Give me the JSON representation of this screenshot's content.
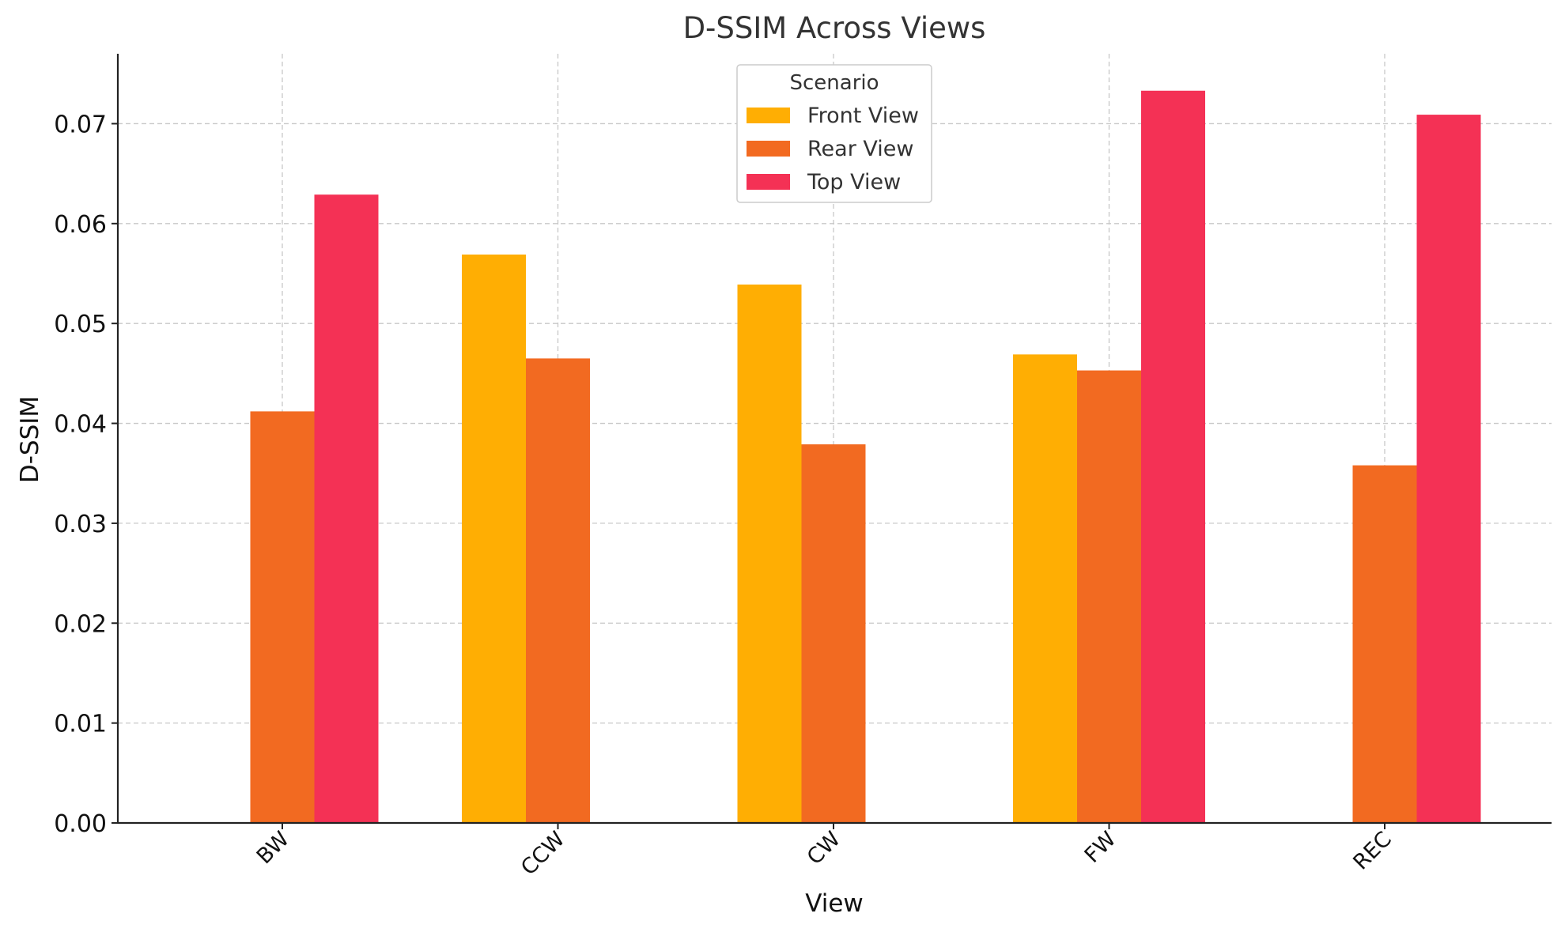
{
  "chart_data": {
    "type": "bar",
    "title": "D-SSIM Across Views",
    "xlabel": "View",
    "ylabel": "D-SSIM",
    "categories": [
      "BW",
      "CCW",
      "CW",
      "FW",
      "REC"
    ],
    "series": [
      {
        "name": "Front View",
        "color": "#FFAE03",
        "values": [
          null,
          0.0569,
          0.0539,
          0.0469,
          null
        ]
      },
      {
        "name": "Rear View",
        "color": "#F26A21",
        "values": [
          0.0412,
          0.0465,
          0.0379,
          0.0453,
          0.0358
        ]
      },
      {
        "name": "Top View",
        "color": "#F43155",
        "values": [
          0.0629,
          null,
          null,
          0.0733,
          0.0709
        ]
      }
    ],
    "ylim": [
      0,
      0.077
    ],
    "yticks": [
      "0.00",
      "0.01",
      "0.02",
      "0.03",
      "0.04",
      "0.05",
      "0.06",
      "0.07"
    ],
    "grid": true,
    "legend": {
      "title": "Scenario",
      "placement": "top-center"
    }
  }
}
